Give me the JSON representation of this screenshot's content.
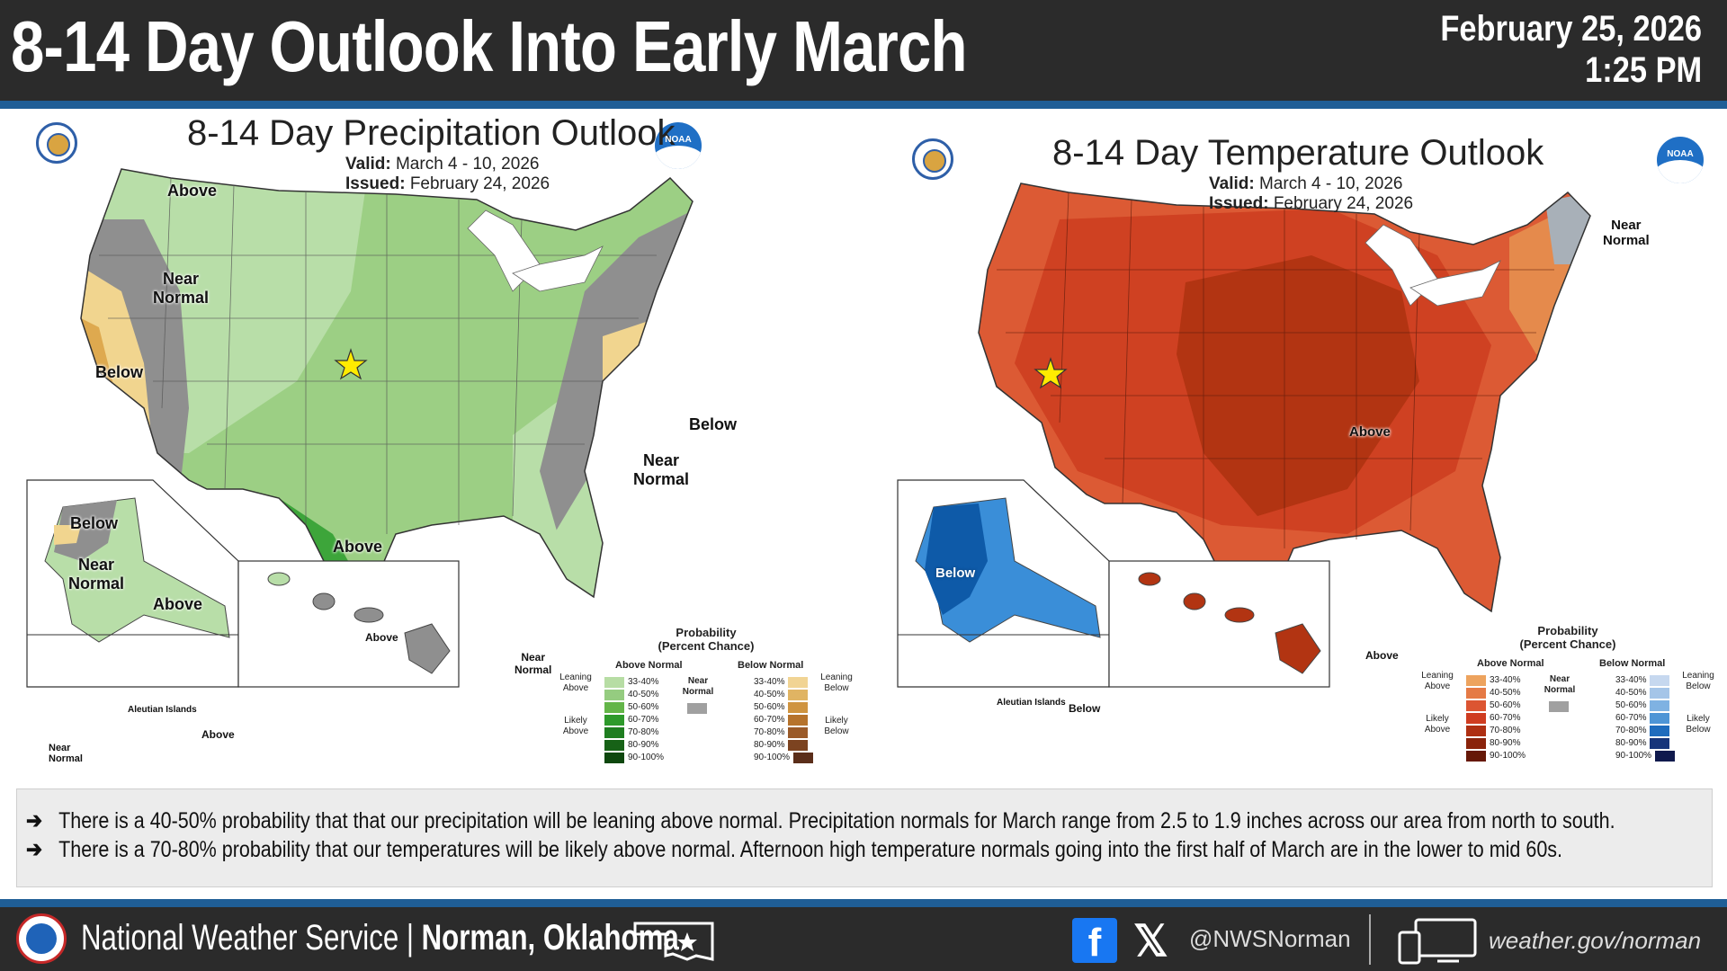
{
  "header": {
    "title": "8-14 Day Outlook Into Early March",
    "date": "February 25, 2026",
    "time": "1:25 PM"
  },
  "precip": {
    "title": "8-14 Day Precipitation Outlook",
    "valid_label": "Valid:",
    "valid": "March 4 - 10, 2026",
    "issued_label": "Issued:",
    "issued": "February 24, 2026",
    "labels": {
      "above_north": "Above",
      "near_west": "Near\nNormal",
      "below_west": "Below",
      "below_east": "Below",
      "near_east": "Near\nNormal",
      "above_texas": "Above",
      "ak_below": "Below",
      "ak_near": "Near\nNormal",
      "ak_above": "Above",
      "aleutian_title": "Aleutian Islands",
      "aleutian_above": "Above",
      "aleutian_near": "Near\nNormal",
      "hi_above": "Above",
      "hi_near": "Near\nNormal"
    },
    "colors": [
      "#b8dea8",
      "#9ccf84",
      "#6cbb4f",
      "#3da53a",
      "#808080",
      "#f1d58f",
      "#dea94f"
    ]
  },
  "temp": {
    "title": "8-14 Day Temperature Outlook",
    "valid_label": "Valid:",
    "valid": "March 4 - 10, 2026",
    "issued_label": "Issued:",
    "issued": "February 24, 2026",
    "labels": {
      "near_ne": "Near\nNormal",
      "above_central": "Above",
      "ak_below": "Below",
      "aleutian_title": "Aleutian Islands",
      "aleutian_below": "Below",
      "hi_above": "Above"
    },
    "colors": [
      "#e58a4c",
      "#dc5a34",
      "#cf4122",
      "#b23412",
      "#99280c",
      "#3a8ed8",
      "#0e5aa8",
      "#a8b0b8"
    ]
  },
  "legend": {
    "title": "Probability\n(Percent Chance)",
    "above_header": "Above Normal",
    "below_header": "Below Normal",
    "near_label": "Near\nNormal",
    "leaning_above": "Leaning\nAbove",
    "likely_above": "Likely\nAbove",
    "leaning_below": "Leaning\nBelow",
    "likely_below": "Likely\nBelow",
    "ranges": [
      "33-40%",
      "40-50%",
      "50-60%",
      "60-70%",
      "70-80%",
      "80-90%",
      "90-100%"
    ],
    "precip_above_colors": [
      "#b7dda4",
      "#95cc80",
      "#63b548",
      "#2e9a2b",
      "#1f7e20",
      "#176217",
      "#0e470e"
    ],
    "precip_below_colors": [
      "#f1d494",
      "#e0b463",
      "#cf9440",
      "#b6732c",
      "#9a5a28",
      "#7c4320",
      "#5b2e1a"
    ],
    "temp_above_colors": [
      "#eda35e",
      "#e57a45",
      "#dc5532",
      "#cf3c20",
      "#ae2f12",
      "#8a230b",
      "#661807"
    ],
    "temp_below_colors": [
      "#c6d8ef",
      "#a5c5e8",
      "#7fb2e2",
      "#4e95d6",
      "#1f6cbd",
      "#16357a",
      "#101a4d"
    ],
    "near_color": "#a0a0a0"
  },
  "bullets": [
    "There is a 40-50% probability that that our precipitation will be leaning above normal.  Precipitation normals for March range from 2.5 to 1.9 inches across our area from north to south.",
    "There is a 70-80% probability that our temperatures will be likely above normal.   Afternoon high temperature normals going into the first half of March are in the lower to mid 60s."
  ],
  "bullet_arrow": "➔",
  "footer": {
    "org": "National Weather Service",
    "separator": " | ",
    "office": "Norman, Oklahoma",
    "handle": "@NWSNorman",
    "website": "weather.gov/norman",
    "x_glyph": "𝕏",
    "fb_glyph": "f"
  },
  "icons": [
    "dept-commerce-seal-icon",
    "noaa-logo-icon",
    "nws-logo-icon",
    "oklahoma-star-icon",
    "facebook-icon",
    "x-icon",
    "computer-monitor-icon"
  ]
}
